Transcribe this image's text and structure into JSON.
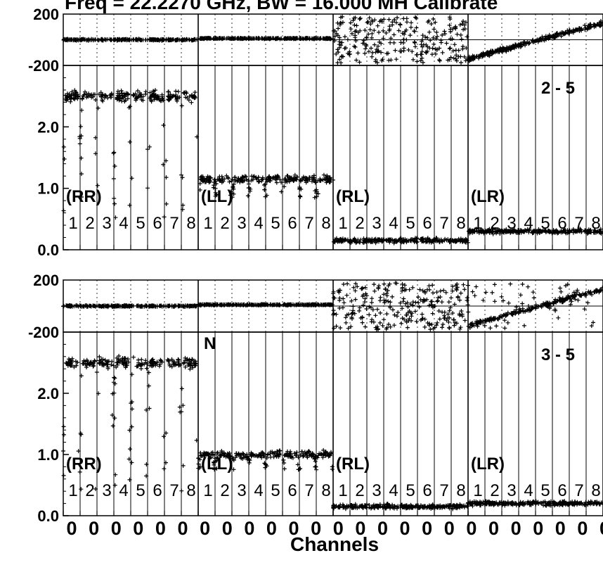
{
  "title": "Freq = 22.2270 GHz, BW = 16.000 MH  Calibrate",
  "chart_data": {
    "type": "scatter",
    "xlabel": "Channels",
    "x_tick_label": "0",
    "x_tick_count": 25,
    "channels_per_block": 128,
    "polarizations": [
      "(RR)",
      "(LL)",
      "(RL)",
      "(LR)"
    ],
    "if_labels": [
      "1",
      "2",
      "3",
      "4",
      "5",
      "6",
      "7",
      "8"
    ],
    "phase_axis": {
      "ticks": [
        "200",
        "-200"
      ],
      "ylim": [
        -200,
        200
      ]
    },
    "amp_axis": {
      "ticks": [
        "2.0",
        "1.0",
        "0.0"
      ],
      "ylim": [
        0,
        3.0
      ]
    },
    "panels": [
      {
        "baseline": "2 - 5",
        "amp_partial_label": "",
        "amp_level": {
          "RR": 2.5,
          "LL": 1.15,
          "RL": 0.15,
          "LR": 0.3
        },
        "amp_dip_min": {
          "RR": 0.5,
          "LL": 0.85
        }
      },
      {
        "baseline": "3 - 5",
        "amp_partial_label": "N",
        "amp_level": {
          "RR": 2.5,
          "LL": 1.0,
          "RL": 0.15,
          "LR": 0.2
        },
        "amp_dip_min": {
          "RR": 0.4,
          "LL": 0.75
        }
      }
    ]
  }
}
